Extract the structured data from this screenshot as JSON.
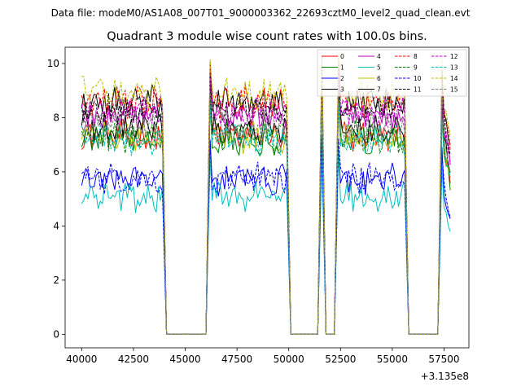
{
  "suptitle": "Data file: modeM0/AS1A08_007T01_9000003362_22693cztM0_level2_quad_clean.evt",
  "chart_data": {
    "type": "line",
    "title": "Quadrant 3 module wise count rates with 100.0s bins.",
    "xlabel": "",
    "ylabel": "",
    "x_offset_label": "+3.135e8",
    "xlim": [
      39200,
      58700
    ],
    "ylim": [
      -0.5,
      10.6
    ],
    "xticks": [
      40000,
      42500,
      45000,
      47500,
      50000,
      52500,
      55000,
      57500
    ],
    "xtick_labels": [
      "40000",
      "42500",
      "45000",
      "47500",
      "50000",
      "52500",
      "55000",
      "57500"
    ],
    "yticks": [
      0,
      2,
      4,
      6,
      8,
      10
    ],
    "ytick_labels": [
      "0",
      "2",
      "4",
      "6",
      "8",
      "10"
    ],
    "legend_position": "top-right",
    "segments": [
      {
        "start": 40000,
        "end": 43900,
        "peak": null
      },
      {
        "start": 46200,
        "end": 49900,
        "peak": 46200
      },
      {
        "start": 51600,
        "end": 51600,
        "peak": 51600
      },
      {
        "start": 52400,
        "end": 55600,
        "peak": 52400
      },
      {
        "start": 57400,
        "end": 57800,
        "peak": 57400
      }
    ],
    "series": [
      {
        "name": "0",
        "color": "#ff0000",
        "dash": "solid",
        "level": 7.3
      },
      {
        "name": "1",
        "color": "#008000",
        "dash": "solid",
        "level": 7.2
      },
      {
        "name": "2",
        "color": "#0000ff",
        "dash": "solid",
        "level": 5.7
      },
      {
        "name": "3",
        "color": "#000000",
        "dash": "solid",
        "level": 8.6
      },
      {
        "name": "4",
        "color": "#bf00bf",
        "dash": "solid",
        "level": 8.0
      },
      {
        "name": "5",
        "color": "#00bfbf",
        "dash": "solid",
        "level": 5.1
      },
      {
        "name": "6",
        "color": "#bfbf00",
        "dash": "solid",
        "level": 7.3
      },
      {
        "name": "7",
        "color": "#000000",
        "dash": "solid",
        "level": 7.6
      },
      {
        "name": "8",
        "color": "#ff0000",
        "dash": "dashed",
        "level": 8.6
      },
      {
        "name": "9",
        "color": "#008000",
        "dash": "dashed",
        "level": 7.3
      },
      {
        "name": "10",
        "color": "#0000ff",
        "dash": "dashed",
        "level": 5.8
      },
      {
        "name": "11",
        "color": "#000000",
        "dash": "dashed",
        "level": 8.3
      },
      {
        "name": "12",
        "color": "#bf00bf",
        "dash": "dashed",
        "level": 8.2
      },
      {
        "name": "13",
        "color": "#00bfbf",
        "dash": "dashed",
        "level": 7.2
      },
      {
        "name": "14",
        "color": "#bfbf00",
        "dash": "dashed",
        "level": 8.9
      },
      {
        "name": "15",
        "color": "#808080",
        "dash": "dashed",
        "level": 7.7
      }
    ]
  }
}
